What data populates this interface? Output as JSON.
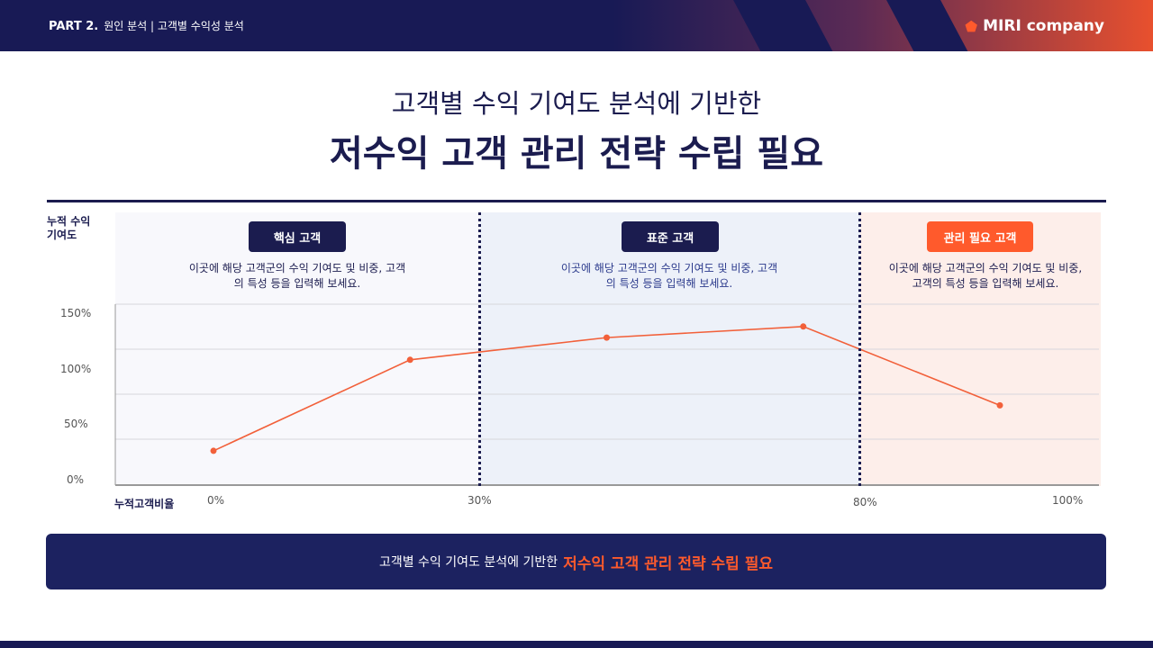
{
  "header": {
    "part": "PART 2.",
    "section": "원인 분석 | 고객별 수익성 분석",
    "logo": "MIRI company"
  },
  "title": {
    "line1": "고객별 수익 기여도 분석에 기반한",
    "line2": "저수익 고객 관리 전략 수립 필요"
  },
  "zones": [
    {
      "label": "핵심 고객",
      "desc": "이곳에 해당 고객군의 수익 기여도 및 비중, 고객\n의 특성 등을 입력해 보세요.",
      "color": "#1b1c4f"
    },
    {
      "label": "표준 고객",
      "desc": "이곳에 해당 고객군의 수익 기여도 및 비중, 고객\n의 특성 등을 입력해 보세요.",
      "color": "#1b1c4f"
    },
    {
      "label": "관리 필요 고객",
      "desc": "이곳에 해당 고객군의 수익 기여도 및 비중,\n고객의 특성 등을 입력해 보세요.",
      "color": "#ff5a2c"
    }
  ],
  "chart_data": {
    "type": "line",
    "ylabel": "누적 수익 기여도",
    "xlabel": "누적고객비율",
    "y_ticks": [
      "150%",
      "100%",
      "50%",
      "0%"
    ],
    "x_ticks": [
      "0%",
      "30%",
      "80%",
      "100%"
    ],
    "ylim": [
      0,
      150
    ],
    "grid": true,
    "values": [
      26,
      108,
      128,
      138,
      67
    ],
    "line_color": "#f2603a"
  },
  "banner": {
    "text": "고객별 수익 기여도 분석에 기반한",
    "highlight": "저수익 고객 관리 전략 수립 필요"
  }
}
